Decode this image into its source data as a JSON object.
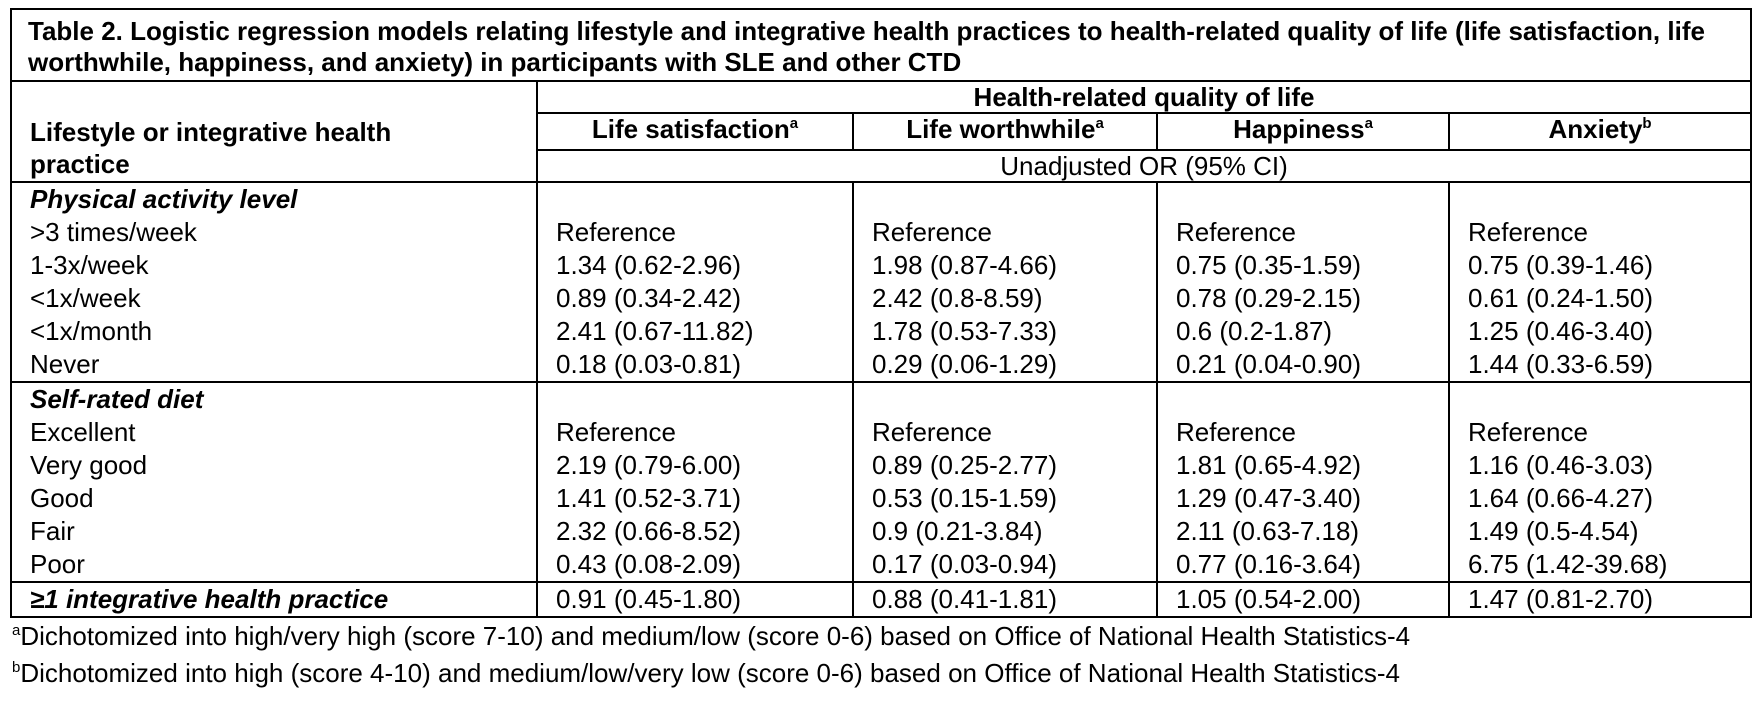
{
  "title": "Table 2. Logistic regression models relating lifestyle and integrative health practices to health-related quality of life (life satisfaction, life worthwhile, happiness, and anxiety) in participants with SLE and other CTD",
  "header": {
    "row_label": "Lifestyle or integrative health practice",
    "group_label": "Health-related quality of life",
    "columns": [
      {
        "label": "Life satisfaction",
        "sup": "a"
      },
      {
        "label": "Life worthwhile",
        "sup": "a"
      },
      {
        "label": "Happiness",
        "sup": "a"
      },
      {
        "label": "Anxiety",
        "sup": "b"
      }
    ],
    "measure": "Unadjusted OR (95% CI)"
  },
  "sections": [
    {
      "title": "Physical activity level",
      "rows": [
        {
          "label": ">3 times/week",
          "values": [
            "Reference",
            "Reference",
            "Reference",
            "Reference"
          ]
        },
        {
          "label": "1-3x/week",
          "values": [
            "1.34 (0.62-2.96)",
            "1.98 (0.87-4.66)",
            "0.75 (0.35-1.59)",
            "0.75 (0.39-1.46)"
          ]
        },
        {
          "label": "<1x/week",
          "values": [
            "0.89 (0.34-2.42)",
            "2.42 (0.8-8.59)",
            "0.78 (0.29-2.15)",
            "0.61 (0.24-1.50)"
          ]
        },
        {
          "label": "<1x/month",
          "values": [
            "2.41 (0.67-11.82)",
            "1.78 (0.53-7.33)",
            "0.6 (0.2-1.87)",
            "1.25 (0.46-3.40)"
          ]
        },
        {
          "label": "Never",
          "values": [
            "0.18 (0.03-0.81)",
            "0.29 (0.06-1.29)",
            "0.21 (0.04-0.90)",
            "1.44 (0.33-6.59)"
          ]
        }
      ]
    },
    {
      "title": "Self-rated diet",
      "rows": [
        {
          "label": "Excellent",
          "values": [
            "Reference",
            "Reference",
            "Reference",
            "Reference"
          ]
        },
        {
          "label": "Very good",
          "values": [
            "2.19 (0.79-6.00)",
            "0.89 (0.25-2.77)",
            "1.81 (0.65-4.92)",
            "1.16 (0.46-3.03)"
          ]
        },
        {
          "label": "Good",
          "values": [
            "1.41 (0.52-3.71)",
            "0.53 (0.15-1.59)",
            "1.29 (0.47-3.40)",
            "1.64 (0.66-4.27)"
          ]
        },
        {
          "label": "Fair",
          "values": [
            "2.32 (0.66-8.52)",
            "0.9 (0.21-3.84)",
            "2.11 (0.63-7.18)",
            "1.49 (0.5-4.54)"
          ]
        },
        {
          "label": "Poor",
          "values": [
            "0.43 (0.08-2.09)",
            "0.17 (0.03-0.94)",
            "0.77 (0.16-3.64)",
            "6.75 (1.42-39.68)"
          ]
        }
      ]
    }
  ],
  "integrative_row": {
    "label": "≥1 integrative health practice",
    "values": [
      "0.91 (0.45-1.80)",
      "0.88 (0.41-1.81)",
      "1.05 (0.54-2.00)",
      "1.47 (0.81-2.70)"
    ]
  },
  "footnotes": [
    {
      "sup": "a",
      "text": "Dichotomized into high/very high (score 7-10) and medium/low (score 0-6) based on Office of National Health Statistics-4"
    },
    {
      "sup": "b",
      "text": "Dichotomized into high (score 4-10) and medium/low/very low (score 0-6) based on Office of National Health Statistics-4"
    }
  ]
}
